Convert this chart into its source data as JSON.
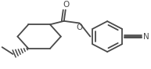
{
  "bg_color": "#ffffff",
  "line_color": "#4a4a4a",
  "line_width": 1.3,
  "figure_width": 1.93,
  "figure_height": 0.88,
  "dpi": 100,
  "atoms": {
    "O_carbonyl": "O",
    "O_ester": "O",
    "N_cyano": "N"
  },
  "layout": {
    "xlim": [
      0,
      193
    ],
    "ylim": [
      0,
      88
    ]
  }
}
